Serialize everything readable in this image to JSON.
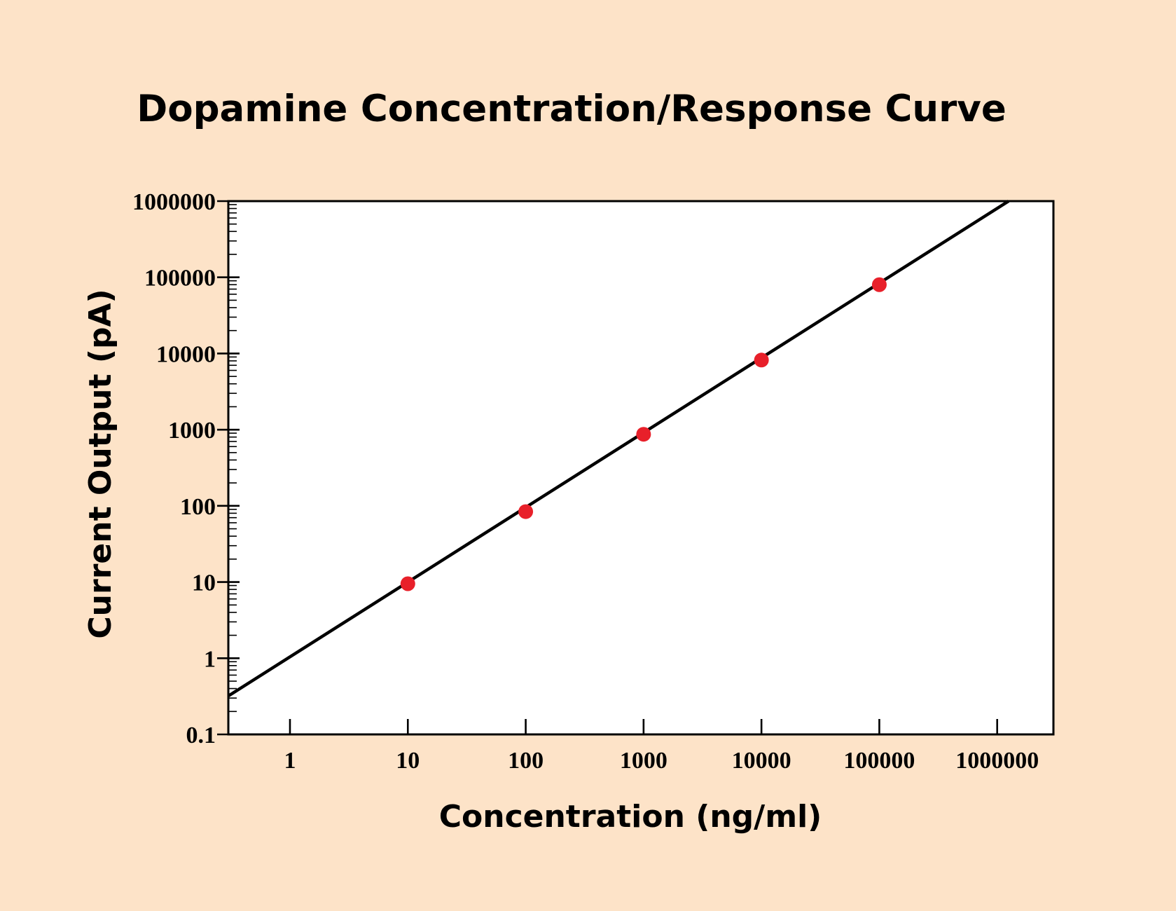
{
  "chart_data": {
    "type": "scatter",
    "title": "Dopamine Concentration/Response Curve",
    "xlabel": "Concentration (ng/ml)",
    "ylabel": "Current Output (pA)",
    "x_scale": "log",
    "y_scale": "log",
    "xlim": [
      0.3,
      3000000
    ],
    "ylim": [
      0.1,
      1000000
    ],
    "x_ticks": [
      1,
      10,
      100,
      1000,
      10000,
      100000,
      1000000
    ],
    "x_tick_labels": [
      "1",
      "10",
      "100",
      "1000",
      "10000",
      "100000",
      "1000000"
    ],
    "y_ticks": [
      0.1,
      1,
      10,
      100,
      1000,
      10000,
      100000,
      1000000
    ],
    "y_tick_labels": [
      "0.1",
      "1",
      "10",
      "100",
      "1000",
      "10000",
      "100000",
      "1000000"
    ],
    "grid": false,
    "series": [
      {
        "kind": "points",
        "color": "#e8202a",
        "x": [
          10,
          100,
          1000,
          10000,
          100000
        ],
        "y": [
          9.5,
          84,
          870,
          8200,
          80000
        ]
      },
      {
        "kind": "fit-line",
        "color": "#000000",
        "x": [
          0.3,
          1250000
        ],
        "y": [
          0.32,
          1000000
        ]
      }
    ]
  }
}
